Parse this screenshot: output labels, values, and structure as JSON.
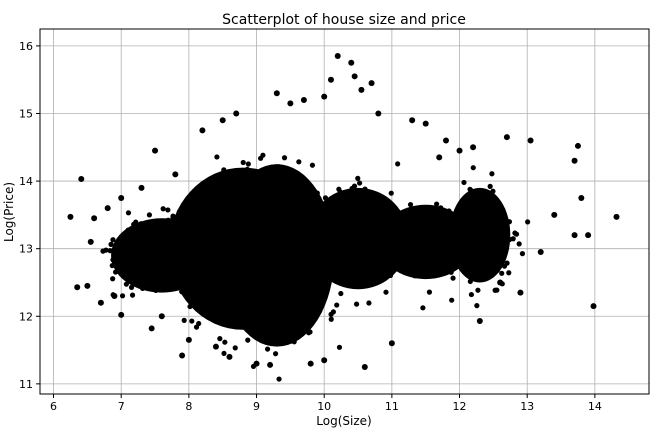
{
  "chart_data": {
    "type": "scatter",
    "title": "Scatterplot of house size and price",
    "xlabel": "Log(Size)",
    "ylabel": "Log(Price)",
    "xlim": [
      5.8,
      14.8
    ],
    "ylim": [
      10.85,
      16.25
    ],
    "xticks": [
      6,
      7,
      8,
      9,
      10,
      11,
      12,
      13,
      14
    ],
    "yticks": [
      11,
      12,
      13,
      14,
      15,
      16
    ],
    "grid": true,
    "marker_color": "#000000",
    "series": [
      {
        "points": [
          [
            6.25,
            13.47
          ],
          [
            6.35,
            12.43
          ],
          [
            6.41,
            14.03
          ],
          [
            6.5,
            12.45
          ],
          [
            6.55,
            13.1
          ],
          [
            6.6,
            13.45
          ],
          [
            6.7,
            12.2
          ],
          [
            6.8,
            13.6
          ],
          [
            6.9,
            12.3
          ],
          [
            7.0,
            13.75
          ],
          [
            7.0,
            12.02
          ],
          [
            7.3,
            13.9
          ],
          [
            7.45,
            11.82
          ],
          [
            7.5,
            14.45
          ],
          [
            7.6,
            12.0
          ],
          [
            7.8,
            14.1
          ],
          [
            7.9,
            11.42
          ],
          [
            8.0,
            11.65
          ],
          [
            8.2,
            14.75
          ],
          [
            8.4,
            11.55
          ],
          [
            8.5,
            14.9
          ],
          [
            8.6,
            11.4
          ],
          [
            8.7,
            15.0
          ],
          [
            9.0,
            11.3
          ],
          [
            9.2,
            11.28
          ],
          [
            9.3,
            15.3
          ],
          [
            9.5,
            15.15
          ],
          [
            9.7,
            15.2
          ],
          [
            9.8,
            11.3
          ],
          [
            10.0,
            11.35
          ],
          [
            10.0,
            15.25
          ],
          [
            10.1,
            15.5
          ],
          [
            10.2,
            15.85
          ],
          [
            10.4,
            15.75
          ],
          [
            10.45,
            15.55
          ],
          [
            10.55,
            15.35
          ],
          [
            10.6,
            11.25
          ],
          [
            10.7,
            15.45
          ],
          [
            10.8,
            15.0
          ],
          [
            11.0,
            11.6
          ],
          [
            11.3,
            14.9
          ],
          [
            11.5,
            14.85
          ],
          [
            11.7,
            14.35
          ],
          [
            11.8,
            14.6
          ],
          [
            12.0,
            14.45
          ],
          [
            12.2,
            14.5
          ],
          [
            12.3,
            11.93
          ],
          [
            12.6,
            12.5
          ],
          [
            12.7,
            14.65
          ],
          [
            12.9,
            12.35
          ],
          [
            13.05,
            14.6
          ],
          [
            13.2,
            12.95
          ],
          [
            13.4,
            13.5
          ],
          [
            13.7,
            14.3
          ],
          [
            13.75,
            14.52
          ],
          [
            13.7,
            13.2
          ],
          [
            13.8,
            13.75
          ],
          [
            13.9,
            13.2
          ],
          [
            13.98,
            12.15
          ],
          [
            14.32,
            13.47
          ]
        ]
      }
    ]
  }
}
